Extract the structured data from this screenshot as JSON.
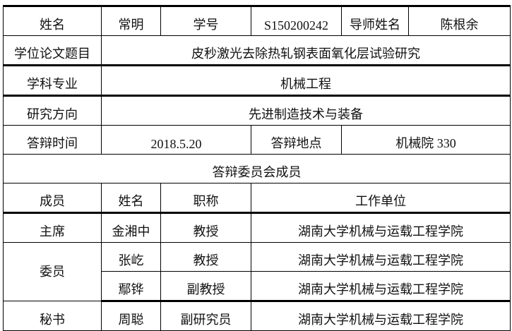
{
  "student": {
    "name_label": "姓名",
    "name": "常明",
    "id_label": "学号",
    "id": "S150200242",
    "advisor_label": "导师姓名",
    "advisor": "陈根余"
  },
  "thesis": {
    "label": "学位论文题目",
    "value": "皮秒激光去除热轧钢表面氧化层试验研究"
  },
  "major": {
    "label": "学科专业",
    "value": "机械工程"
  },
  "direction": {
    "label": "研究方向",
    "value": "先进制造技术与装备"
  },
  "defense": {
    "time_label": "答辩时间",
    "time": "2018.5.20",
    "place_label": "答辩地点",
    "place": "机械院 330"
  },
  "committee": {
    "title": "答辩委员会成员",
    "headers": [
      "成员",
      "姓名",
      "职称",
      "工作单位"
    ],
    "rows": [
      {
        "role": "主席",
        "name": "金湘中",
        "title": "教授",
        "unit": "湖南大学机械与运载工程学院"
      },
      {
        "role": "委员",
        "name": "张屹",
        "title": "教授",
        "unit": "湖南大学机械与运载工程学院"
      },
      {
        "role": "",
        "name": "鄢铧",
        "title": "副教授",
        "unit": "湖南大学机械与运载工程学院"
      },
      {
        "role": "秘书",
        "name": "周聪",
        "title": "副研究员",
        "unit": "湖南大学机械与运载工程学院"
      }
    ]
  }
}
